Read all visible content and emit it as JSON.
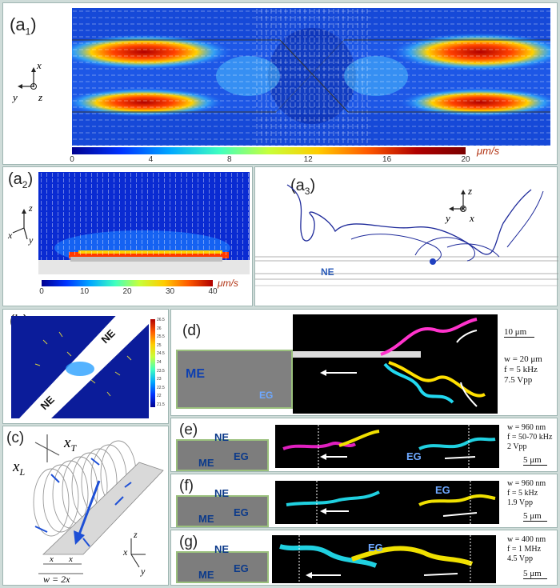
{
  "panels": {
    "a1": {
      "label_main": "(a",
      "label_sub": "1",
      "label_end": ")",
      "colorbar_ticks": [
        "0",
        "4",
        "8",
        "12",
        "16",
        "20"
      ],
      "unit": "μm/s",
      "axes": {
        "x": "x",
        "y": "y",
        "z": "z"
      }
    },
    "a2": {
      "label_main": "(a",
      "label_sub": "2",
      "label_end": ")",
      "colorbar_ticks": [
        "0",
        "10",
        "20",
        "30",
        "40"
      ],
      "unit": "μm/s",
      "axes": {
        "x": "x",
        "y": "y",
        "z": "z"
      }
    },
    "a3": {
      "label_main": "(a",
      "label_sub": "3",
      "label_end": ")",
      "ne": "NE",
      "axes": {
        "x": "x",
        "y": "y",
        "z": "z"
      }
    },
    "b": {
      "label": "(b)",
      "ne_top": "NE",
      "ne_bottom": "NE",
      "colorbar_ticks": [
        "26.5",
        "26",
        "25.5",
        "25",
        "24.5",
        "24",
        "23.5",
        "23",
        "22.5",
        "22",
        "21.5"
      ]
    },
    "c": {
      "label": "(c)",
      "xT": "x",
      "xT_sub": "T",
      "xL": "x",
      "xL_sub": "L",
      "dim_x": "x",
      "width_eq": "w = 2x",
      "axes": {
        "x": "x",
        "y": "y",
        "z": "z"
      }
    },
    "d": {
      "label": "(d)",
      "me": "ME",
      "eg": "EG",
      "scale": "10 μm",
      "meta": [
        "w = 20 μm",
        "f = 5 kHz",
        "7.5 Vpp"
      ]
    },
    "e": {
      "label": "(e)",
      "ne": "NE",
      "me": "ME",
      "eg_small": "EG",
      "eg": "EG",
      "scale": "5 μm",
      "meta": [
        "w = 960 nm",
        "f = 50-70 kHz",
        "2 Vpp"
      ]
    },
    "f": {
      "label": "(f)",
      "ne": "NE",
      "me": "ME",
      "eg_small": "EG",
      "eg": "EG",
      "scale": "5 μm",
      "meta": [
        "w = 960 nm",
        "f = 5 kHz",
        "1.9 Vpp"
      ]
    },
    "g": {
      "label": "(g)",
      "ne": "NE",
      "me": "ME",
      "eg_small": "EG",
      "eg": "EG",
      "scale": "5 μm",
      "meta": [
        "w = 400 nm",
        "f = 1 MHz",
        "4.5 Vpp"
      ]
    }
  }
}
